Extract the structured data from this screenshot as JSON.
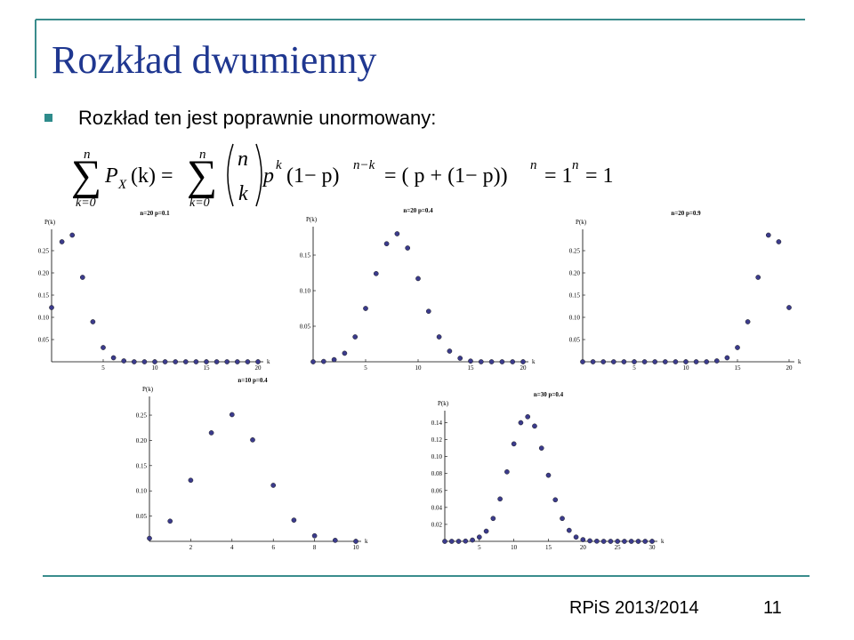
{
  "title": "Rozkład dwumienny",
  "bullet": "Rozkład ten jest poprawnie unormowany:",
  "formula": {
    "sum1": "∑",
    "sum1_top": "n",
    "sum1_bottom": "k=0",
    "p_x": "P",
    "p_x_sub": "X",
    "p_x_arg": "(k) =",
    "sum2": "∑",
    "sum2_top": "n",
    "sum2_bottom": "k=0",
    "binom_top": "n",
    "binom_bottom": "k",
    "p": "p",
    "p_exp": "k",
    "one_minus_p": "(1− p)",
    "one_minus_p_exp": "n−k",
    "eq2": "= ( p + (1− p))",
    "eq2_exp": "n",
    "eq3": "= 1",
    "eq3_exp": "n",
    "eq4": "= 1"
  },
  "footer": {
    "course": "RPiS 2013/2014",
    "page": "11"
  },
  "chart_data": [
    {
      "type": "scatter",
      "title": "n=20  p=0.1",
      "x_label": "k",
      "y_label": "P(k)",
      "color": "#3b3b8c",
      "x": [
        0,
        1,
        2,
        3,
        4,
        5,
        6,
        7,
        8,
        9,
        10,
        11,
        12,
        13,
        14,
        15,
        16,
        17,
        18,
        19,
        20
      ],
      "values": [
        0.122,
        0.27,
        0.285,
        0.19,
        0.09,
        0.032,
        0.009,
        0.002,
        0,
        0,
        0,
        0,
        0,
        0,
        0,
        0,
        0,
        0,
        0,
        0,
        0
      ],
      "xlim": [
        0,
        20
      ],
      "ylim": [
        0,
        0.29
      ],
      "xticks": [
        5,
        10,
        15,
        20
      ],
      "yticks": [
        0.05,
        {
          "value": 0.1,
          "label": "0.10"
        },
        0.15,
        {
          "value": 0.2,
          "label": "0.20"
        },
        0.25
      ]
    },
    {
      "type": "scatter",
      "title": "n=20  p=0.4",
      "x_label": "k",
      "y_label": "P(k)",
      "color": "#3b3b8c",
      "x": [
        0,
        1,
        2,
        3,
        4,
        5,
        6,
        7,
        8,
        9,
        10,
        11,
        12,
        13,
        14,
        15,
        16,
        17,
        18,
        19,
        20
      ],
      "values": [
        0,
        0.0005,
        0.003,
        0.012,
        0.035,
        0.075,
        0.124,
        0.166,
        0.18,
        0.16,
        0.117,
        0.071,
        0.035,
        0.015,
        0.005,
        0.001,
        0,
        0,
        0,
        0,
        0
      ],
      "xlim": [
        0,
        20
      ],
      "ylim": [
        0,
        0.185
      ],
      "xticks": [
        5,
        10,
        15,
        20
      ],
      "yticks": [
        0.05,
        {
          "value": 0.1,
          "label": "0.10"
        },
        0.15
      ]
    },
    {
      "type": "scatter",
      "title": "n=20  p=0.9",
      "x_label": "k",
      "y_label": "P(k)",
      "color": "#3b3b8c",
      "x": [
        0,
        1,
        2,
        3,
        4,
        5,
        6,
        7,
        8,
        9,
        10,
        11,
        12,
        13,
        14,
        15,
        16,
        17,
        18,
        19,
        20
      ],
      "values": [
        0,
        0,
        0,
        0,
        0,
        0,
        0,
        0,
        0,
        0,
        0,
        0,
        0,
        0.002,
        0.009,
        0.032,
        0.09,
        0.19,
        0.285,
        0.27,
        0.122
      ],
      "xlim": [
        0,
        20
      ],
      "ylim": [
        0,
        0.29
      ],
      "xticks": [
        5,
        10,
        15,
        20
      ],
      "yticks": [
        0.05,
        {
          "value": 0.1,
          "label": "0.10"
        },
        0.15,
        {
          "value": 0.2,
          "label": "0.20"
        },
        0.25
      ]
    },
    {
      "type": "scatter",
      "title": "n=10  p=0.4",
      "x_label": "k",
      "y_label": "P(k)",
      "color": "#3b3b8c",
      "x": [
        0,
        1,
        2,
        3,
        4,
        5,
        6,
        7,
        8,
        9,
        10
      ],
      "values": [
        0.006,
        0.04,
        0.121,
        0.215,
        0.251,
        0.201,
        0.111,
        0.042,
        0.011,
        0.002,
        0
      ],
      "xlim": [
        0,
        10
      ],
      "ylim": [
        0,
        0.28
      ],
      "xticks": [
        2,
        4,
        6,
        8,
        10
      ],
      "yticks": [
        0.05,
        {
          "value": 0.1,
          "label": "0.10"
        },
        0.15,
        {
          "value": 0.2,
          "label": "0.20"
        },
        0.25
      ]
    },
    {
      "type": "scatter",
      "title": "n=30  p=0.4",
      "x_label": "k",
      "y_label": "P(k)",
      "color": "#3b3b8c",
      "x": [
        0,
        1,
        2,
        3,
        4,
        5,
        6,
        7,
        8,
        9,
        10,
        11,
        12,
        13,
        14,
        15,
        16,
        17,
        18,
        19,
        20,
        21,
        22,
        23,
        24,
        25,
        26,
        27,
        28,
        29,
        30
      ],
      "values": [
        0,
        0,
        0,
        0.0003,
        0.0015,
        0.005,
        0.012,
        0.027,
        0.05,
        0.082,
        0.115,
        0.14,
        0.147,
        0.136,
        0.11,
        0.078,
        0.049,
        0.027,
        0.013,
        0.005,
        0.002,
        0.0006,
        0.0002,
        0,
        0,
        0,
        0,
        0,
        0,
        0,
        0
      ],
      "xlim": [
        0,
        30
      ],
      "ylim": [
        0,
        0.15
      ],
      "xticks": [
        5,
        10,
        15,
        20,
        25,
        30
      ],
      "yticks": [
        0.02,
        0.04,
        0.06,
        0.08,
        {
          "value": 0.1,
          "label": "0.10"
        },
        0.12,
        0.14
      ]
    }
  ]
}
